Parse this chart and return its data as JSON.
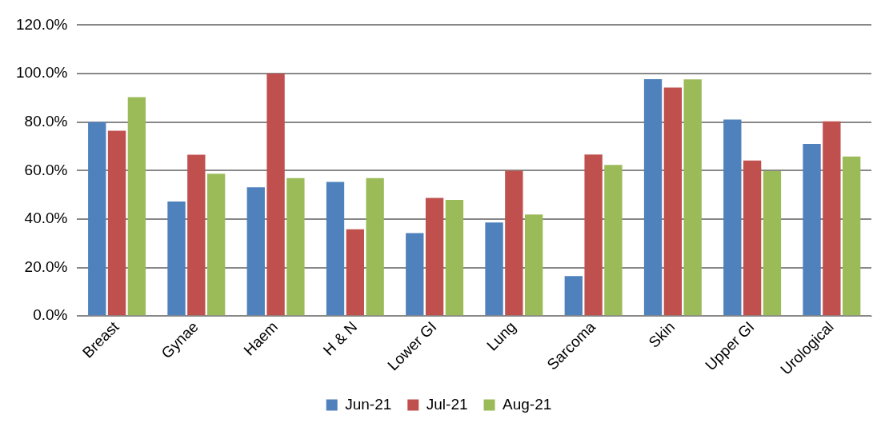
{
  "chart_data": {
    "type": "bar",
    "categories": [
      "Breast",
      "Gynae",
      "Haem",
      "H & N",
      "Lower GI",
      "Lung",
      "Sarcoma",
      "Skin",
      "Upper GI",
      "Urological"
    ],
    "series": [
      {
        "name": "Jun-21",
        "color": "#4f81bd",
        "values": [
          80.0,
          47.2,
          53.1,
          55.3,
          34.2,
          38.6,
          16.5,
          97.7,
          81.0,
          71.0
        ]
      },
      {
        "name": "Jul-21",
        "color": "#c0504d",
        "values": [
          76.4,
          66.5,
          100.0,
          35.8,
          48.7,
          59.9,
          66.6,
          94.2,
          64.1,
          80.3
        ]
      },
      {
        "name": "Aug-21",
        "color": "#9bbb59",
        "values": [
          90.3,
          58.7,
          56.9,
          56.9,
          47.9,
          41.9,
          62.3,
          97.6,
          59.8,
          65.8
        ]
      }
    ],
    "ylim": [
      0,
      120
    ],
    "yticks": [
      {
        "value": 0,
        "label": "0.0%"
      },
      {
        "value": 20,
        "label": "20.0%"
      },
      {
        "value": 40,
        "label": "40.0%"
      },
      {
        "value": 60,
        "label": "60.0%"
      },
      {
        "value": 80,
        "label": "80.0%"
      },
      {
        "value": 100,
        "label": "100.0%"
      },
      {
        "value": 120,
        "label": "120.0%"
      }
    ],
    "grid": "y",
    "legend": "bottom"
  }
}
